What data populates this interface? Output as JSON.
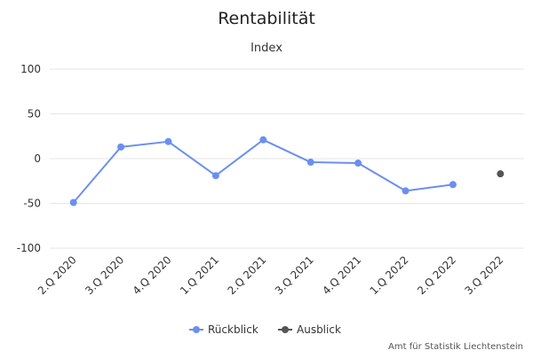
{
  "chart_data": {
    "type": "line",
    "title": "Rentabilität",
    "subtitle": "Index",
    "categories": [
      "2.Q 2020",
      "3.Q 2020",
      "4.Q 2020",
      "1.Q 2021",
      "2.Q 2021",
      "3.Q 2021",
      "4.Q 2021",
      "1.Q 2022",
      "2.Q 2022",
      "3.Q 2022"
    ],
    "ylim": [
      -100,
      100
    ],
    "yticks": [
      100,
      50,
      0,
      -50,
      -100
    ],
    "grid": true,
    "legend_position": "bottom",
    "series": [
      {
        "name": "Rückblick",
        "color": "#6b8ff0",
        "values": [
          -49,
          13,
          19,
          -19,
          21,
          -4,
          -5,
          -36,
          -29,
          null
        ]
      },
      {
        "name": "Ausblick",
        "color": "#555555",
        "values": [
          null,
          null,
          null,
          null,
          null,
          null,
          null,
          null,
          null,
          -17
        ]
      }
    ],
    "credits": "Amt für Statistik Liechtenstein"
  }
}
